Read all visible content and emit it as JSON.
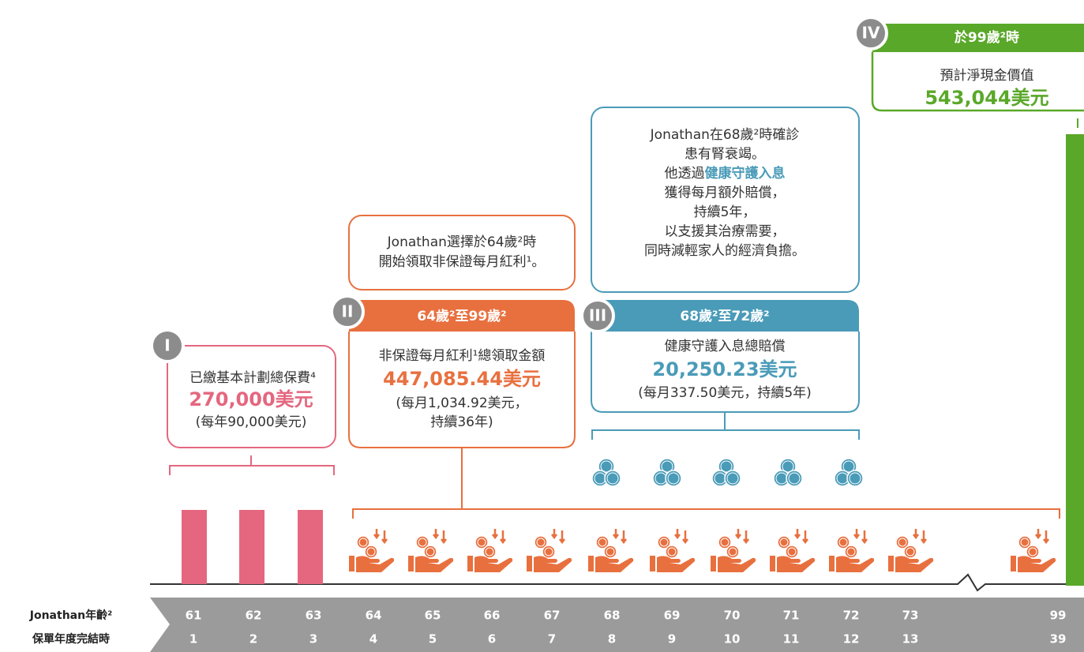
{
  "stage_1": {
    "badge": "I",
    "title": "已繳基本計劃總保費⁴",
    "amount": "270,000美元",
    "note": "(每年90,000美元)"
  },
  "stage_2": {
    "badge": "II",
    "header": "64歲²至99歲²",
    "title": "非保證每月紅利¹總領取金額",
    "amount": "447,085.44美元",
    "note": [
      "(每月1,034.92美元，",
      "持續36年)"
    ],
    "description": [
      "Jonathan選擇於64歲²時",
      "開始領取非保證每月紅利¹。"
    ]
  },
  "stage_3": {
    "badge": "III",
    "header": "68歲²至72歲²",
    "title": "健康守護入息總賠償",
    "amount": "20,250.23美元",
    "note": "(每月337.50美元，持續5年)",
    "description": [
      "Jonathan在68歲²時確診",
      "患有腎衰竭。",
      {
        "before": "他透過",
        "highlight": "健康守護入息"
      },
      "獲得每月額外賠償，",
      "持續5年，",
      "以支援其治療需要，",
      "同時減輕家人的經濟負擔。"
    ]
  },
  "stage_4": {
    "badge": "IV",
    "header": "於99歲²時",
    "title": "預計淨現金價值",
    "amount": "543,044美元"
  },
  "timeline": {
    "row_labels": [
      "Jonathan年齡²",
      "保單年度完結時"
    ],
    "ages": [
      61,
      62,
      63,
      64,
      65,
      66,
      67,
      68,
      69,
      70,
      71,
      72,
      73,
      99
    ],
    "years": [
      1,
      2,
      3,
      4,
      5,
      6,
      7,
      8,
      9,
      10,
      11,
      12,
      13,
      39
    ]
  }
}
